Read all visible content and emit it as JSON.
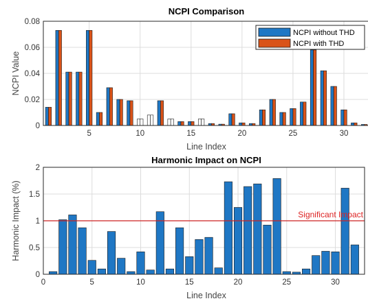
{
  "chart_data": [
    {
      "type": "bar",
      "title": "NCPI Comparison",
      "xlabel": "Line Index",
      "ylabel": "NCPI Value",
      "xlim": [
        0.5,
        32.5
      ],
      "ylim": [
        0,
        0.08
      ],
      "xticks": [
        5,
        10,
        15,
        20,
        25,
        30
      ],
      "yticks": [
        0,
        0.02,
        0.04,
        0.06,
        0.08
      ],
      "grid": true,
      "legend_position": "top-right",
      "categories": [
        1,
        2,
        3,
        4,
        5,
        6,
        7,
        8,
        9,
        10,
        11,
        12,
        13,
        14,
        15,
        16,
        17,
        18,
        19,
        20,
        21,
        22,
        23,
        24,
        25,
        26,
        27,
        28,
        29,
        30,
        31,
        32
      ],
      "series": [
        {
          "name": "NCPI without THD",
          "color": "#1f77c4",
          "values": [
            0.014,
            0.073,
            0.041,
            0.041,
            0.073,
            0.01,
            0.029,
            0.02,
            0.019,
            0.005,
            0.008,
            0.019,
            0.005,
            0.003,
            0.003,
            0.005,
            0.0015,
            0.001,
            0.009,
            0.002,
            0.0015,
            0.012,
            0.02,
            0.01,
            0.013,
            0.018,
            0.058,
            0.042,
            0.03,
            0.012,
            0.002,
            0.0008
          ]
        },
        {
          "name": "NCPI with THD",
          "color": "#d95319",
          "values": [
            0.014,
            0.073,
            0.041,
            0.041,
            0.073,
            0.01,
            0.029,
            0.02,
            0.019,
            0.005,
            0.008,
            0.019,
            0.005,
            0.003,
            0.003,
            0.005,
            0.0015,
            0.001,
            0.009,
            0.002,
            0.0015,
            0.012,
            0.02,
            0.01,
            0.013,
            0.018,
            0.058,
            0.042,
            0.03,
            0.012,
            0.002,
            0.0008
          ]
        }
      ]
    },
    {
      "type": "bar",
      "title": "Harmonic Impact on NCPI",
      "xlabel": "Line Index",
      "ylabel": "Harmonic Impact (%)",
      "xlim": [
        0,
        33
      ],
      "ylim": [
        0,
        2
      ],
      "xticks": [
        0,
        5,
        10,
        15,
        20,
        25,
        30
      ],
      "yticks": [
        0,
        0.5,
        1,
        1.5,
        2
      ],
      "grid": true,
      "categories": [
        1,
        2,
        3,
        4,
        5,
        6,
        7,
        8,
        9,
        10,
        11,
        12,
        13,
        14,
        15,
        16,
        17,
        18,
        19,
        20,
        21,
        22,
        23,
        24,
        25,
        26,
        27,
        28,
        29,
        30,
        31,
        32
      ],
      "series": [
        {
          "color": "#1f77c4",
          "values": [
            0.05,
            1.02,
            1.11,
            0.87,
            0.26,
            0.1,
            0.8,
            0.3,
            0.05,
            0.42,
            0.08,
            1.17,
            0.1,
            0.87,
            0.33,
            0.65,
            0.69,
            0.12,
            1.73,
            1.25,
            1.64,
            1.69,
            0.92,
            1.79,
            0.05,
            0.04,
            0.1,
            0.35,
            0.43,
            0.42,
            1.61,
            0.55
          ]
        }
      ],
      "reference_line": {
        "y": 1,
        "label": "Significant Impact",
        "color": "#cc2222"
      }
    }
  ]
}
